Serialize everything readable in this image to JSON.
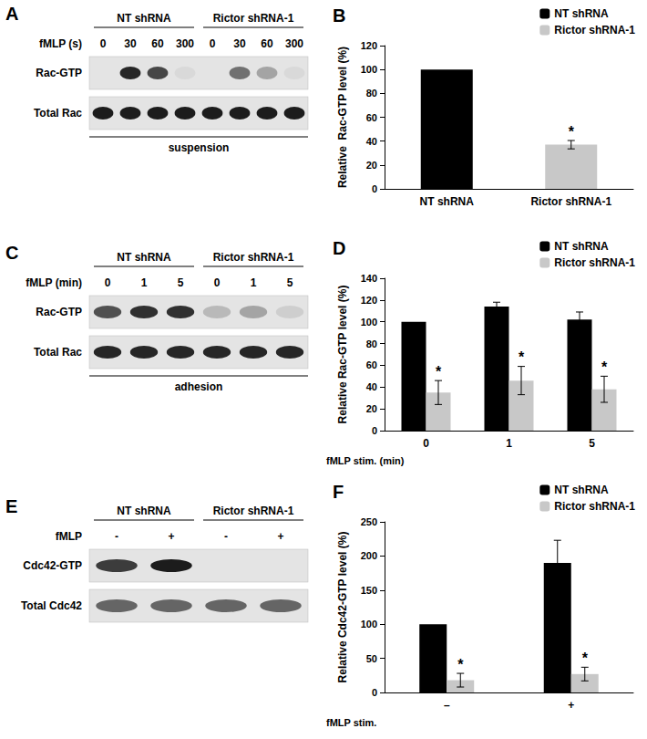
{
  "chart_data": [
    {
      "type": "bar",
      "title": "B",
      "categories": [
        "NT shRNA",
        "Rictor shRNA-1"
      ],
      "series": [
        {
          "name": "NT shRNA",
          "color": "#000000",
          "values": [
            100,
            null
          ],
          "errors": [
            0,
            null
          ]
        },
        {
          "name": "Rictor shRNA-1",
          "color": "#c8c8c8",
          "values": [
            null,
            37
          ],
          "errors": [
            null,
            3.5
          ]
        }
      ],
      "annotations": [
        {
          "text": "*",
          "series": "Rictor shRNA-1",
          "category": "Rictor shRNA-1"
        }
      ],
      "ylabel": "Relative  Rac-GTP level (%)",
      "ylim": [
        0,
        120
      ],
      "yticks": [
        0,
        20,
        40,
        60,
        80,
        100,
        120
      ],
      "grid": false,
      "legend": "top-right"
    },
    {
      "type": "bar",
      "title": "D",
      "categories": [
        "0",
        "1",
        "5"
      ],
      "xlabel": "fMLP stim. (min)",
      "series": [
        {
          "name": "NT shRNA",
          "color": "#000000",
          "values": [
            100,
            114,
            102
          ],
          "errors": [
            0,
            4,
            7
          ]
        },
        {
          "name": "Rictor shRNA-1",
          "color": "#c8c8c8",
          "values": [
            35,
            46,
            38
          ],
          "errors": [
            11,
            13,
            12
          ]
        }
      ],
      "annotations": [
        {
          "text": "*",
          "series": "Rictor shRNA-1",
          "category": "0"
        },
        {
          "text": "*",
          "series": "Rictor shRNA-1",
          "category": "1"
        },
        {
          "text": "*",
          "series": "Rictor shRNA-1",
          "category": "5"
        }
      ],
      "ylabel": "Relative Rac-GTP level (%)",
      "ylim": [
        0,
        140
      ],
      "yticks": [
        0,
        20,
        40,
        60,
        80,
        100,
        120,
        140
      ],
      "grid": false,
      "legend": "top-right"
    },
    {
      "type": "bar",
      "title": "F",
      "categories": [
        "–",
        "+"
      ],
      "xlabel": "fMLP stim.",
      "series": [
        {
          "name": "NT shRNA",
          "color": "#000000",
          "values": [
            100,
            190
          ],
          "errors": [
            0,
            33
          ]
        },
        {
          "name": "Rictor shRNA-1",
          "color": "#c8c8c8",
          "values": [
            18,
            27
          ],
          "errors": [
            10,
            10
          ]
        }
      ],
      "annotations": [
        {
          "text": "*",
          "series": "Rictor shRNA-1",
          "category": "–"
        },
        {
          "text": "*",
          "series": "Rictor shRNA-1",
          "category": "+"
        }
      ],
      "ylabel": "Relative Cdc42-GTP level (%)",
      "ylim": [
        0,
        250
      ],
      "yticks": [
        0,
        50,
        100,
        150,
        200,
        250
      ],
      "grid": false,
      "legend": "top-right"
    }
  ],
  "blots": [
    {
      "title": "A",
      "treatment_label": "fMLP  (s)",
      "groups": [
        {
          "label": "NT shRNA",
          "lanes": [
            "0",
            "30",
            "60",
            "300"
          ]
        },
        {
          "label": "Rictor shRNA-1",
          "lanes": [
            "0",
            "30",
            "60",
            "300"
          ]
        }
      ],
      "rows": [
        {
          "label": "Rac-GTP",
          "intensity": [
            0,
            0.9,
            0.75,
            0.05,
            0,
            0.55,
            0.3,
            0.05
          ]
        },
        {
          "label": "Total Rac",
          "intensity": [
            0.95,
            0.95,
            0.95,
            0.95,
            0.95,
            0.95,
            0.95,
            0.95
          ]
        }
      ],
      "condition": "suspension"
    },
    {
      "title": "C",
      "treatment_label": "fMLP (min)",
      "groups": [
        {
          "label": "NT shRNA",
          "lanes": [
            "0",
            "1",
            "5"
          ]
        },
        {
          "label": "Rictor shRNA-1",
          "lanes": [
            "0",
            "1",
            "5"
          ]
        }
      ],
      "rows": [
        {
          "label": "Rac-GTP",
          "intensity": [
            0.7,
            0.85,
            0.85,
            0.2,
            0.3,
            0.1
          ]
        },
        {
          "label": "Total Rac",
          "intensity": [
            0.9,
            0.9,
            0.9,
            0.9,
            0.9,
            0.9
          ]
        }
      ],
      "condition": "adhesion"
    },
    {
      "title": "E",
      "treatment_label": "fMLP",
      "groups": [
        {
          "label": "NT shRNA",
          "lanes": [
            "-",
            "+"
          ]
        },
        {
          "label": "Rictor shRNA-1",
          "lanes": [
            "-",
            "+"
          ]
        }
      ],
      "rows": [
        {
          "label": "Cdc42-GTP",
          "intensity": [
            0.8,
            0.95,
            0,
            0
          ]
        },
        {
          "label": "Total Cdc42",
          "intensity": [
            0.6,
            0.6,
            0.6,
            0.6
          ]
        }
      ]
    }
  ]
}
